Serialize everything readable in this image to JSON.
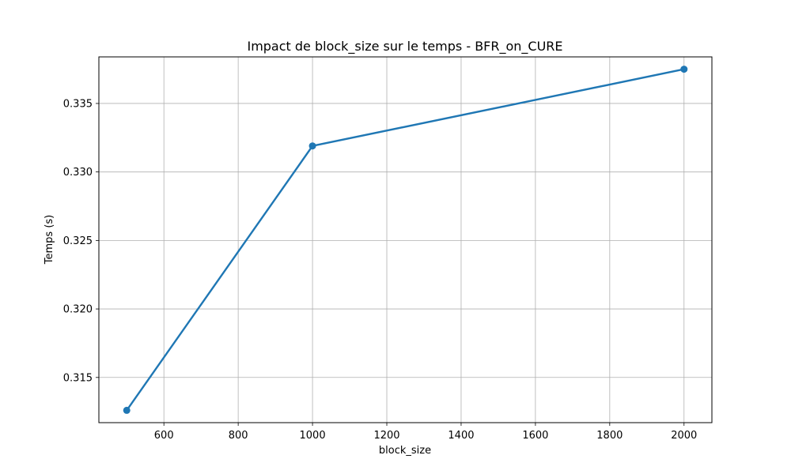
{
  "chart_data": {
    "type": "line",
    "title": "Impact de block_size sur le temps - BFR_on_CURE",
    "xlabel": "block_size",
    "ylabel": "Temps (s)",
    "xlim": [
      425,
      2075
    ],
    "ylim": [
      0.3117,
      0.3384
    ],
    "x_ticks": [
      600,
      800,
      1000,
      1200,
      1400,
      1600,
      1800,
      2000
    ],
    "y_ticks": [
      0.315,
      0.32,
      0.325,
      0.33,
      0.335
    ],
    "x_tick_labels": [
      "600",
      "800",
      "1000",
      "1200",
      "1400",
      "1600",
      "1800",
      "2000"
    ],
    "y_tick_labels": [
      "0.315",
      "0.320",
      "0.325",
      "0.330",
      "0.335"
    ],
    "grid": true,
    "series": [
      {
        "x": [
          500,
          1000,
          2000
        ],
        "y": [
          0.3126,
          0.3319,
          0.3375
        ],
        "color": "#1f77b4",
        "marker": "circle"
      }
    ]
  }
}
